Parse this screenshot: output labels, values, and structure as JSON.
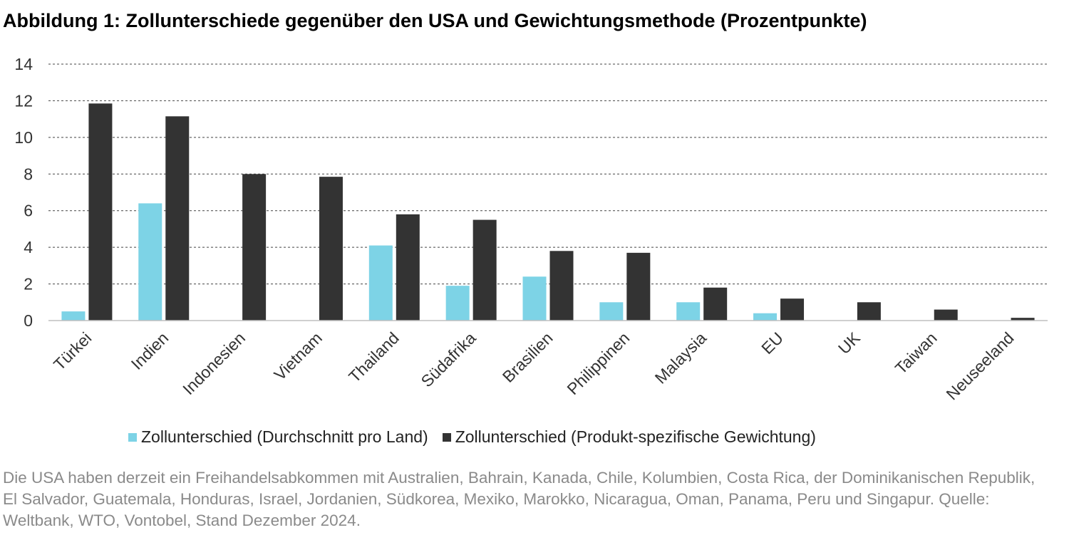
{
  "title": "Abbildung 1: Zollunterschiede gegenüber den USA und Gewichtungsmethode (Prozentpunkte)",
  "note": "Die USA haben derzeit ein Freihandelsabkommen mit Australien, Bahrain, Kanada, Chile, Kolumbien, Costa Rica, der Dominikanischen Republik, El Salvador, Guatemala, Honduras, Israel, Jordanien, Südkorea, Mexiko, Marokko, Nicaragua, Oman, Panama, Peru und Singapur. Quelle: Weltbank, WTO, Vontobel, Stand Dezember 2024.",
  "colors": {
    "series1": "#7dd3e6",
    "series2": "#333333",
    "grid": "#444444",
    "axis": "#bfbfbf",
    "tick_text": "#333333"
  },
  "chart_data": {
    "type": "bar",
    "title": "Abbildung 1: Zollunterschiede gegenüber den USA und Gewichtungsmethode (Prozentpunkte)",
    "xlabel": "",
    "ylabel": "",
    "ylim": [
      0,
      14
    ],
    "yticks": [
      0,
      2,
      4,
      6,
      8,
      10,
      12,
      14
    ],
    "grid": true,
    "legend_position": "bottom",
    "categories": [
      "Türkei",
      "Indien",
      "Indonesien",
      "Vietnam",
      "Thailand",
      "Südafrika",
      "Brasilien",
      "Philippinen",
      "Malaysia",
      "EU",
      "UK",
      "Taiwan",
      "Neuseeland"
    ],
    "series": [
      {
        "name": "Zollunterschied (Durchschnitt pro Land)",
        "values": [
          0.5,
          6.4,
          0,
          0,
          4.1,
          1.9,
          2.4,
          1.0,
          1.0,
          0.4,
          0,
          0,
          0
        ]
      },
      {
        "name": "Zollunterschied (Produkt-spezifische Gewichtung)",
        "values": [
          11.85,
          11.15,
          8.0,
          7.85,
          5.8,
          5.5,
          3.8,
          3.7,
          1.8,
          1.2,
          1.0,
          0.6,
          0.15
        ]
      }
    ]
  }
}
